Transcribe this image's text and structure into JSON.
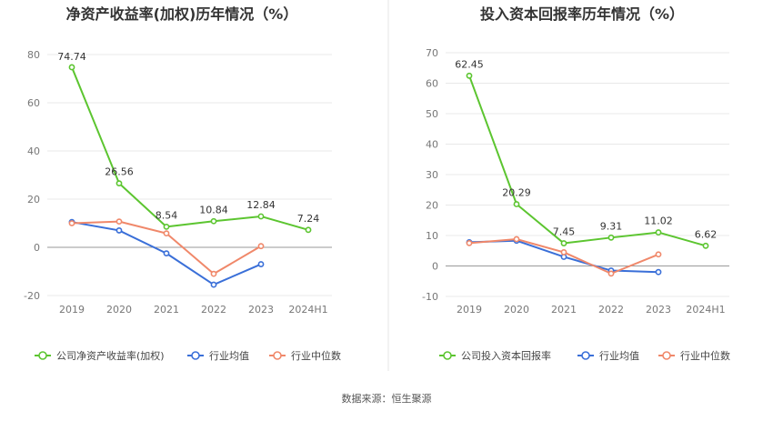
{
  "source_label": "数据来源：恒生聚源",
  "colors": {
    "company": "#5cc530",
    "industry_avg": "#3a6fd8",
    "industry_median": "#f0886a"
  },
  "chart_data": [
    {
      "type": "line",
      "title": "净资产收益率(加权)历年情况（%）",
      "categories": [
        "2019",
        "2020",
        "2021",
        "2022",
        "2023",
        "2024H1"
      ],
      "ylim": [
        -20,
        80
      ],
      "yticks": [
        -20,
        0,
        20,
        40,
        60,
        80
      ],
      "grid": true,
      "legend_position": "bottom",
      "series": [
        {
          "name": "公司净资产收益率(加权)",
          "key": "company",
          "values": [
            74.74,
            26.56,
            8.54,
            10.84,
            12.84,
            7.24
          ],
          "labels": [
            "74.74",
            "26.56",
            "8.54",
            "10.84",
            "12.84",
            "7.24"
          ]
        },
        {
          "name": "行业均值",
          "key": "industry_avg",
          "values": [
            10.5,
            7.0,
            -2.5,
            -15.5,
            -7.0,
            null
          ]
        },
        {
          "name": "行业中位数",
          "key": "industry_median",
          "values": [
            10.0,
            10.7,
            5.8,
            -11.0,
            0.5,
            null
          ]
        }
      ]
    },
    {
      "type": "line",
      "title": "投入资本回报率历年情况（%）",
      "categories": [
        "2019",
        "2020",
        "2021",
        "2022",
        "2023",
        "2024H1"
      ],
      "ylim": [
        -10,
        70
      ],
      "yticks": [
        -10,
        0,
        10,
        20,
        30,
        40,
        50,
        60,
        70
      ],
      "grid": true,
      "legend_position": "bottom",
      "series": [
        {
          "name": "公司投入资本回报率",
          "key": "company",
          "values": [
            62.45,
            20.29,
            7.45,
            9.31,
            11.02,
            6.62
          ],
          "labels": [
            "62.45",
            "20.29",
            "7.45",
            "9.31",
            "11.02",
            "6.62"
          ]
        },
        {
          "name": "行业均值",
          "key": "industry_avg",
          "values": [
            7.8,
            8.3,
            3.0,
            -1.5,
            -2.0,
            null
          ]
        },
        {
          "name": "行业中位数",
          "key": "industry_median",
          "values": [
            7.5,
            8.8,
            4.5,
            -2.5,
            3.8,
            null
          ]
        }
      ]
    }
  ]
}
